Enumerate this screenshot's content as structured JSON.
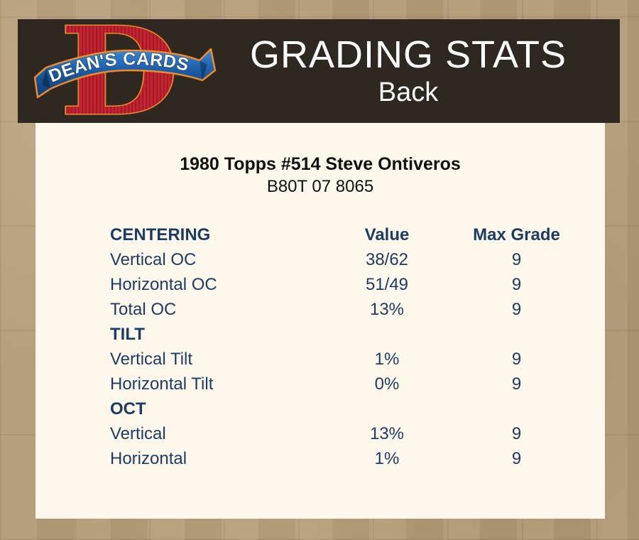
{
  "logo": {
    "monogram": "D",
    "banner_text": "DEAN'S CARDS"
  },
  "header": {
    "title": "GRADING STATS",
    "subtitle": "Back"
  },
  "card": {
    "title": "1980 Topps #514 Steve Ontiveros",
    "serial": "B80T 07 8065"
  },
  "table": {
    "rows": [
      {
        "type": "header",
        "label": "CENTERING",
        "value": "Value",
        "max": "Max Grade"
      },
      {
        "type": "data",
        "label": "Vertical OC",
        "value": "38/62",
        "max": "9"
      },
      {
        "type": "data",
        "label": "Horizontal OC",
        "value": "51/49",
        "max": "9"
      },
      {
        "type": "data",
        "label": "Total OC",
        "value": "13%",
        "max": "9"
      },
      {
        "type": "section",
        "label": "TILT",
        "value": "",
        "max": ""
      },
      {
        "type": "data",
        "label": "Vertical Tilt",
        "value": "1%",
        "max": "9"
      },
      {
        "type": "data",
        "label": "Horizontal Tilt",
        "value": "0%",
        "max": "9"
      },
      {
        "type": "section",
        "label": "OCT",
        "value": "",
        "max": ""
      },
      {
        "type": "data",
        "label": "Vertical",
        "value": "13%",
        "max": "9"
      },
      {
        "type": "data",
        "label": "Horizontal",
        "value": "1%",
        "max": "9"
      }
    ]
  },
  "colors": {
    "page_bg": "#b29b78",
    "header_bg": "#2e2821",
    "panel_bg": "#fdf8eb",
    "table_text": "#1d3c63",
    "title_text": "#111111",
    "header_text": "#ffffff",
    "logo_red": "#c4232f",
    "logo_orange": "#ee8c2a",
    "ribbon_blue": "#1b5ca6"
  }
}
